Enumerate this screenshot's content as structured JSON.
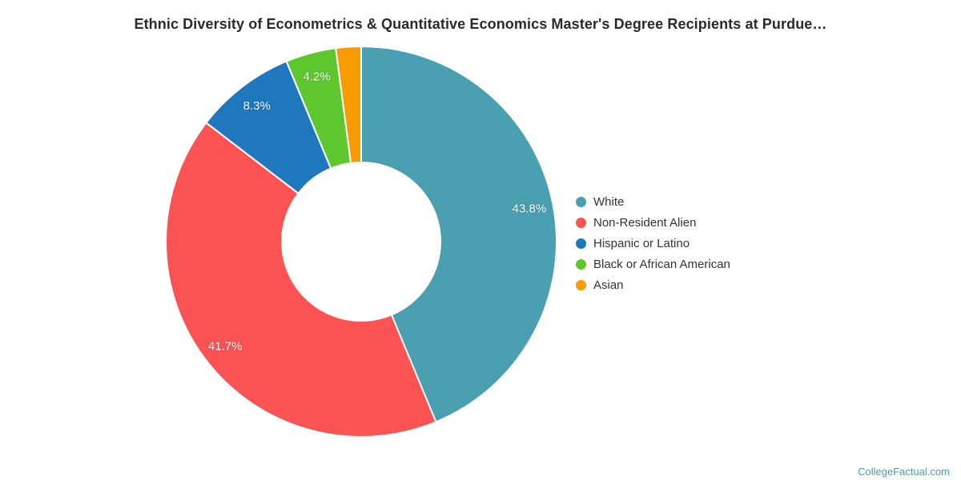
{
  "title": "Ethnic Diversity of Econometrics & Quantitative Economics Master's Degree Recipients at Purdue…",
  "watermark": "CollegeFactual.com",
  "watermark_color": "#4a9baf",
  "chart_data": {
    "type": "pie",
    "donut": true,
    "title": "Ethnic Diversity of Econometrics & Quantitative Economics Master's Degree Recipients at Purdue…",
    "legend_position": "right",
    "categories": [
      "White",
      "Non-Resident Alien",
      "Hispanic or Latino",
      "Black or African American",
      "Asian"
    ],
    "values": [
      43.8,
      41.7,
      8.3,
      4.2,
      2.1
    ],
    "slices": [
      {
        "name": "White",
        "value": 43.75,
        "label": "43.8%",
        "color": "#4a9fb0"
      },
      {
        "name": "Non-Resident Alien",
        "value": 41.67,
        "label": "41.7%",
        "color": "#fb5353"
      },
      {
        "name": "Hispanic or Latino",
        "value": 8.33,
        "label": "8.3%",
        "color": "#1f77be"
      },
      {
        "name": "Black or African American",
        "value": 4.17,
        "label": "4.2%",
        "color": "#5fc72e"
      },
      {
        "name": "Asian",
        "value": 2.08,
        "label": "",
        "color": "#f89b00"
      }
    ]
  }
}
